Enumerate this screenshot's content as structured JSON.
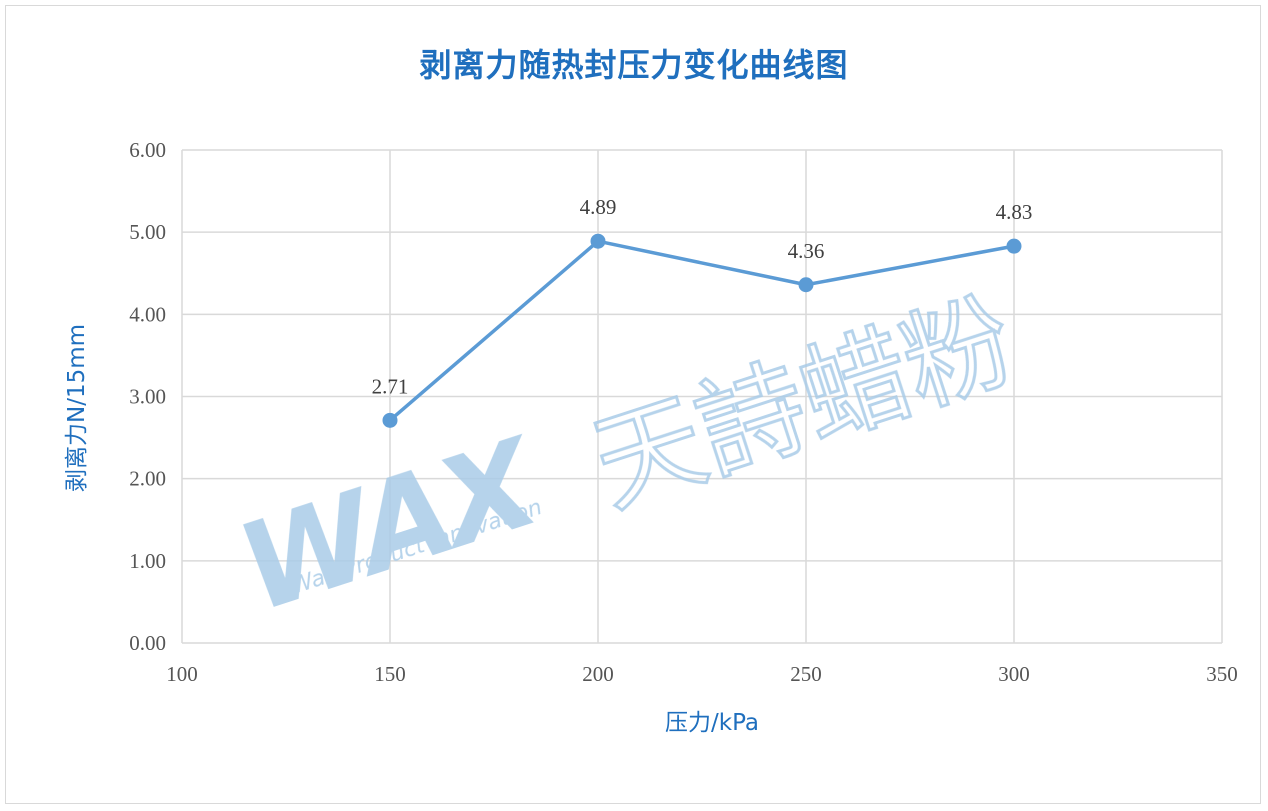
{
  "chart_data": {
    "type": "scatter",
    "title": "剥离力随热封压力变化曲线图",
    "xlabel": "压力/kPa",
    "ylabel": "剥离力N/15mm",
    "xlim": [
      100,
      350
    ],
    "ylim": [
      0,
      6
    ],
    "x_ticks": [
      "100",
      "150",
      "200",
      "250",
      "300",
      "350"
    ],
    "y_ticks": [
      "0.00",
      "1.00",
      "2.00",
      "3.00",
      "4.00",
      "5.00",
      "6.00"
    ],
    "grid": true,
    "legend": "none",
    "series": [
      {
        "x": [
          150,
          200,
          250,
          300
        ],
        "y": [
          2.71,
          4.89,
          4.36,
          4.83
        ],
        "labels": [
          "2.71",
          "4.89",
          "4.36",
          "4.83"
        ],
        "color": "#5b9bd5",
        "style": "line-with-markers"
      }
    ]
  },
  "watermark": {
    "logo_text": "WAX",
    "logo_tagline": "Wax Product Innovation",
    "script_text": "天詩蜡粉",
    "color": "#a9cce8"
  },
  "colors": {
    "title": "#1f6fbe",
    "axis_title": "#1f6fbe",
    "grid": "#d9d9d9",
    "series": "#5b9bd5"
  }
}
